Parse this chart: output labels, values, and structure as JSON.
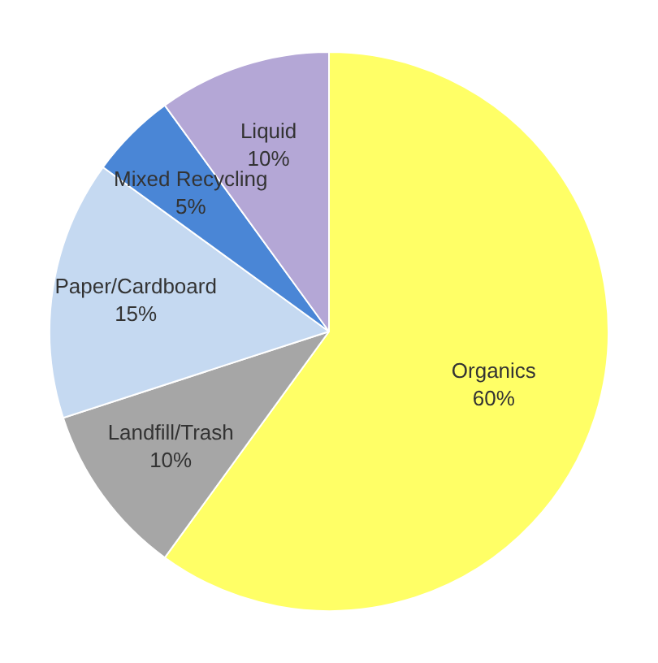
{
  "chart_data": {
    "type": "pie",
    "categories": [
      "Organics",
      "Landfill/Trash",
      "Paper/Cardboard",
      "Mixed Recycling",
      "Liquid"
    ],
    "values": [
      60,
      10,
      15,
      5,
      10
    ],
    "colors": [
      "#ffff66",
      "#a6a6a6",
      "#c5d9f1",
      "#4a86d6",
      "#b4a7d6"
    ],
    "value_labels": [
      "60%",
      "10%",
      "15%",
      "5%",
      "10%"
    ],
    "legend": false
  }
}
